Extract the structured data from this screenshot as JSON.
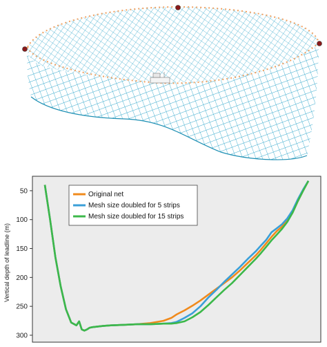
{
  "figure": {
    "top_panel": {
      "content": "purse-seine-net-3d-illustration",
      "net_color": "#29a3c9",
      "float_color": "#f0a060",
      "buoy_color": "#8b1a1a"
    }
  },
  "chart_data": {
    "type": "line",
    "title": "",
    "xlabel": "",
    "ylabel": "Vertical depth of leadline (m)",
    "y_inverted": true,
    "ylim": [
      25,
      312
    ],
    "xlim": [
      0,
      100
    ],
    "yticks": [
      50,
      100,
      150,
      200,
      250,
      300
    ],
    "x_ticks_shown": false,
    "grid": false,
    "background": "#ececec",
    "legend": {
      "placement": "top-center"
    },
    "series": [
      {
        "name": "Original net",
        "color": "#f08a1c",
        "x": [
          0,
          2,
          4,
          6,
          8,
          10,
          12,
          13,
          14,
          15,
          16,
          17,
          18,
          20,
          22,
          25,
          30,
          35,
          40,
          45,
          48,
          50,
          53,
          56,
          59,
          62,
          65,
          68,
          71,
          74,
          77,
          80,
          82,
          84,
          86,
          88,
          90,
          92,
          94,
          96,
          98,
          100
        ],
        "y": [
          40,
          100,
          165,
          215,
          255,
          278,
          283,
          276,
          290,
          292,
          290,
          287,
          286,
          285,
          284,
          283,
          282,
          281,
          279,
          275,
          270,
          264,
          257,
          249,
          240,
          230,
          220,
          210,
          200,
          188,
          175,
          162,
          152,
          141,
          130,
          120,
          112,
          102,
          88,
          68,
          50,
          33
        ]
      },
      {
        "name": "Mesh size doubled for 5 strips",
        "color": "#3a9fd8",
        "x": [
          0,
          2,
          4,
          6,
          8,
          10,
          12,
          13,
          14,
          15,
          16,
          17,
          18,
          20,
          22,
          25,
          30,
          35,
          40,
          45,
          48,
          50,
          53,
          56,
          59,
          62,
          65,
          68,
          71,
          74,
          77,
          80,
          82,
          84,
          86,
          88,
          90,
          92,
          94,
          96,
          98,
          100
        ],
        "y": [
          40,
          100,
          165,
          215,
          255,
          278,
          283,
          276,
          290,
          292,
          290,
          287,
          286,
          285,
          284,
          283,
          282,
          281,
          281,
          280,
          279,
          277,
          270,
          262,
          250,
          235,
          222,
          208,
          195,
          182,
          168,
          155,
          145,
          135,
          122,
          115,
          108,
          98,
          84,
          65,
          48,
          33
        ]
      },
      {
        "name": "Mesh size doubled for 15 strips",
        "color": "#3cb84a",
        "x": [
          0,
          2,
          4,
          6,
          8,
          10,
          12,
          13,
          14,
          15,
          16,
          17,
          18,
          20,
          22,
          25,
          30,
          35,
          40,
          45,
          48,
          50,
          53,
          56,
          59,
          62,
          65,
          68,
          71,
          74,
          77,
          80,
          82,
          84,
          86,
          88,
          90,
          92,
          94,
          96,
          98,
          100
        ],
        "y": [
          40,
          100,
          165,
          215,
          255,
          278,
          283,
          276,
          290,
          292,
          290,
          287,
          286,
          285,
          284,
          283,
          282,
          281,
          281,
          280,
          280,
          279,
          276,
          269,
          260,
          248,
          235,
          222,
          210,
          196,
          182,
          168,
          158,
          147,
          136,
          126,
          116,
          104,
          88,
          68,
          50,
          33
        ]
      }
    ]
  }
}
